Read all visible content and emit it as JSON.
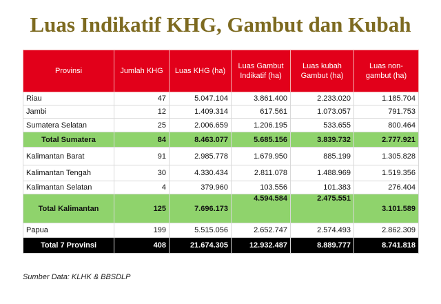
{
  "title": "Luas Indikatif KHG, Gambut dan Kubah",
  "table": {
    "header": [
      "Provinsi",
      "Jumlah KHG",
      "Luas KHG (ha)",
      "Luas Gambut Indikatif (ha)",
      "Luas kubah Gambut (ha)",
      "Luas non-gambut (ha)"
    ],
    "rows": [
      [
        "Riau",
        "47",
        "5.047.104",
        "3.861.400",
        "2.233.020",
        "1.185.704"
      ],
      [
        "Jambi",
        "12",
        "1.409.314",
        "617.561",
        "1.073.057",
        "791.753"
      ],
      [
        "Sumatera Selatan",
        "25",
        "2.006.659",
        "1.206.195",
        "533.655",
        "800.464"
      ],
      [
        "Total Sumatera",
        "84",
        "8.463.077",
        "5.685.156",
        "3.839.732",
        "2.777.921"
      ],
      [
        "Kalimantan Barat",
        "91",
        "2.985.778",
        "1.679.950",
        "885.199",
        "1.305.828"
      ],
      [
        "Kalimantan Tengah",
        "30",
        "4.330.434",
        "2.811.078",
        "1.488.969",
        "1.519.356"
      ],
      [
        "Kalimantan Selatan",
        "4",
        "379.960",
        "103.556",
        "101.383",
        "276.404"
      ],
      [
        "Total Kalimantan",
        "125",
        "7.696.173",
        "4.594.584",
        "2.475.551",
        "3.101.589"
      ],
      [
        "Papua",
        "199",
        "5.515.056",
        "2.652.747",
        "2.574.493",
        "2.862.309"
      ],
      [
        "Total 7 Provinsi",
        "408",
        "21.674.305",
        "12.932.487",
        "8.889.777",
        "8.741.818"
      ]
    ]
  },
  "source": "Sumber Data: KLHK & BBSDLP"
}
